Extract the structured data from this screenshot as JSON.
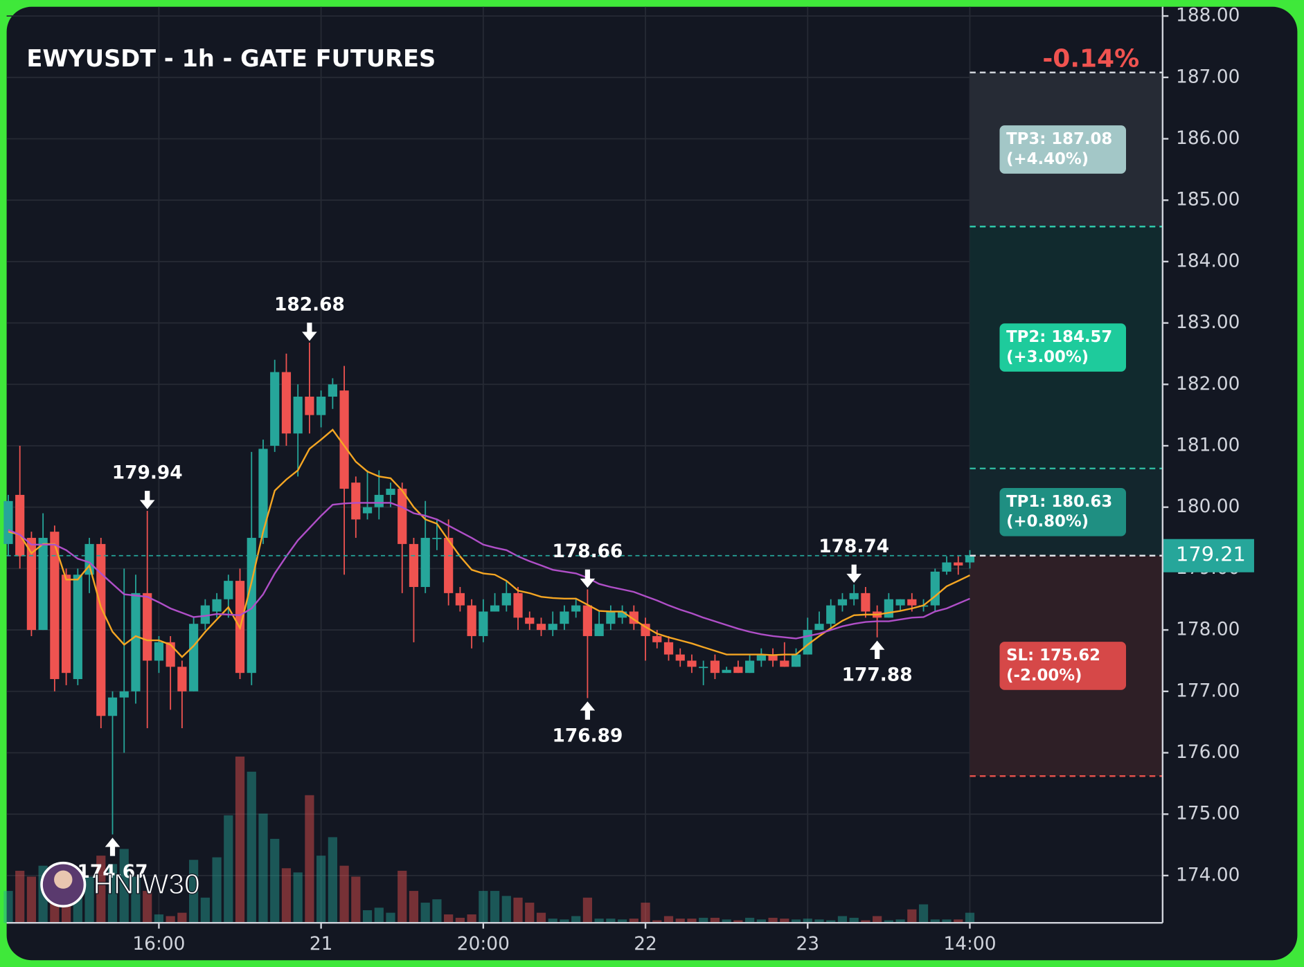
{
  "chart_data": {
    "type": "candlestick",
    "title": "EWYUSDT - 1h - GATE FUTURES",
    "change_label": "-0.14%",
    "change_color": "#f05350",
    "watermark": "HNIW30",
    "up_color": "#26a69a",
    "down_color": "#ef5350",
    "grid": true,
    "xlim": [
      -0.14,
      99.64
    ],
    "ylim": [
      173.23,
      188.15
    ],
    "xticks": [
      {
        "value": 13,
        "label": "16:00"
      },
      {
        "value": 27,
        "label": "21"
      },
      {
        "value": 41,
        "label": "20:00"
      },
      {
        "value": 55,
        "label": "22"
      },
      {
        "value": 69,
        "label": "23"
      },
      {
        "value": 83,
        "label": "14:00"
      }
    ],
    "yticks": [
      {
        "value": 174,
        "label": "174.00"
      },
      {
        "value": 175,
        "label": "175.00"
      },
      {
        "value": 176,
        "label": "176.00"
      },
      {
        "value": 177,
        "label": "177.00"
      },
      {
        "value": 178,
        "label": "178.00"
      },
      {
        "value": 179,
        "label": "179.00"
      },
      {
        "value": 180,
        "label": "180.00"
      },
      {
        "value": 181,
        "label": "181.00"
      },
      {
        "value": 182,
        "label": "182.00"
      },
      {
        "value": 183,
        "label": "183.00"
      },
      {
        "value": 184,
        "label": "184.00"
      },
      {
        "value": 185,
        "label": "185.00"
      },
      {
        "value": 186,
        "label": "186.00"
      },
      {
        "value": 187,
        "label": "187.00"
      },
      {
        "value": 188,
        "label": "188.00"
      }
    ],
    "open": [
      179.4,
      180.2,
      179.5,
      178.0,
      179.6,
      178.9,
      177.2,
      178.9,
      179.4,
      176.6,
      176.9,
      177.0,
      178.6,
      177.5,
      177.8,
      177.4,
      177.0,
      178.1,
      178.3,
      178.5,
      178.8,
      177.3,
      179.5,
      181.0,
      182.2,
      181.2,
      181.8,
      181.5,
      181.8,
      181.9,
      180.4,
      179.9,
      180.0,
      180.2,
      180.3,
      179.4,
      178.7,
      179.5,
      179.5,
      178.6,
      178.4,
      177.9,
      178.3,
      178.4,
      178.6,
      178.2,
      178.1,
      178.0,
      178.1,
      178.3,
      178.4,
      177.9,
      178.1,
      178.2,
      178.3,
      178.1,
      177.9,
      177.8,
      177.6,
      177.5,
      177.4,
      177.5,
      177.3,
      177.4,
      177.3,
      177.5,
      177.6,
      177.5,
      177.4,
      177.6,
      178.0,
      178.1,
      178.4,
      178.5,
      178.6,
      178.3,
      178.2,
      178.4,
      178.5,
      178.4,
      178.4,
      178.95,
      179.1,
      179.1
    ],
    "high": [
      180.2,
      181.0,
      179.6,
      179.9,
      179.7,
      179.0,
      179.0,
      179.5,
      179.5,
      177.0,
      179.0,
      178.9,
      179.94,
      177.9,
      177.9,
      177.5,
      178.2,
      178.5,
      178.6,
      178.9,
      179.0,
      180.9,
      181.1,
      182.4,
      182.5,
      182.0,
      182.68,
      181.9,
      182.1,
      182.3,
      180.5,
      180.6,
      180.6,
      180.4,
      180.4,
      179.5,
      180.1,
      179.8,
      179.8,
      178.7,
      178.5,
      178.5,
      178.6,
      178.8,
      178.7,
      178.3,
      178.2,
      178.3,
      178.4,
      178.5,
      178.66,
      178.3,
      178.4,
      178.4,
      178.4,
      178.2,
      178.0,
      177.9,
      177.7,
      177.6,
      177.5,
      177.6,
      177.4,
      177.5,
      177.6,
      177.7,
      177.7,
      177.8,
      177.7,
      178.2,
      178.3,
      178.5,
      178.6,
      178.74,
      178.7,
      178.4,
      178.6,
      178.5,
      178.6,
      178.5,
      179.0,
      179.2,
      179.2,
      179.3
    ],
    "low": [
      179.2,
      179.0,
      177.9,
      178.0,
      177.0,
      177.1,
      177.1,
      178.6,
      176.4,
      174.67,
      176.0,
      176.8,
      176.4,
      177.3,
      176.7,
      176.4,
      177.0,
      178.0,
      178.2,
      178.2,
      177.2,
      177.1,
      179.4,
      180.9,
      181.0,
      180.5,
      181.2,
      181.3,
      181.6,
      178.9,
      179.5,
      179.8,
      179.8,
      180.0,
      178.6,
      177.8,
      178.6,
      179.3,
      178.4,
      178.3,
      177.7,
      177.8,
      178.3,
      178.3,
      178.0,
      178.0,
      177.9,
      177.9,
      178.0,
      178.2,
      176.89,
      177.9,
      178.0,
      178.1,
      178.0,
      177.5,
      177.7,
      177.5,
      177.4,
      177.3,
      177.1,
      177.2,
      177.3,
      177.3,
      177.3,
      177.4,
      177.4,
      177.4,
      177.4,
      177.6,
      178.0,
      178.0,
      178.3,
      178.4,
      178.2,
      177.88,
      178.2,
      178.3,
      178.3,
      178.3,
      178.3,
      178.9,
      178.9,
      179.0
    ],
    "close": [
      180.1,
      179.2,
      178.0,
      179.5,
      177.2,
      177.3,
      178.9,
      179.4,
      176.6,
      176.9,
      177.0,
      178.6,
      177.5,
      177.8,
      177.4,
      177.0,
      178.1,
      178.4,
      178.5,
      178.8,
      177.3,
      179.5,
      180.95,
      182.2,
      181.2,
      181.8,
      181.5,
      181.8,
      182.0,
      180.3,
      179.8,
      180.0,
      180.2,
      180.3,
      179.4,
      178.7,
      179.5,
      179.5,
      178.6,
      178.4,
      177.9,
      178.3,
      178.4,
      178.6,
      178.2,
      178.1,
      178.0,
      178.1,
      178.3,
      178.4,
      177.9,
      178.1,
      178.3,
      178.3,
      178.1,
      177.9,
      177.8,
      177.6,
      177.5,
      177.4,
      177.4,
      177.3,
      177.35,
      177.3,
      177.5,
      177.6,
      177.5,
      177.4,
      177.6,
      178.0,
      178.1,
      178.4,
      178.5,
      178.6,
      178.3,
      178.2,
      178.5,
      178.5,
      178.4,
      178.4,
      178.95,
      179.1,
      179.05,
      179.21
    ],
    "volume": [
      38,
      62,
      55,
      68,
      38,
      40,
      60,
      55,
      80,
      70,
      88,
      55,
      38,
      10,
      8,
      12,
      75,
      30,
      78,
      128,
      198,
      180,
      130,
      100,
      65,
      60,
      152,
      80,
      102,
      68,
      55,
      15,
      18,
      12,
      62,
      38,
      24,
      28,
      10,
      6,
      10,
      38,
      38,
      32,
      30,
      24,
      12,
      5,
      4,
      8,
      30,
      5,
      5,
      4,
      5,
      24,
      3,
      8,
      5,
      5,
      6,
      6,
      4,
      3,
      6,
      4,
      6,
      5,
      4,
      5,
      4,
      3,
      8,
      6,
      3,
      8,
      3,
      4,
      16,
      22,
      4,
      4,
      4,
      12
    ],
    "lines": [
      {
        "color": "#f5a623",
        "values": [
          179.6,
          179.55,
          179.25,
          179.4,
          179.4,
          178.82,
          178.82,
          179.05,
          178.37,
          177.97,
          177.76,
          177.9,
          177.83,
          177.83,
          177.76,
          177.56,
          177.74,
          177.97,
          178.17,
          178.37,
          178.03,
          178.78,
          179.6,
          180.27,
          180.45,
          180.6,
          180.95,
          181.1,
          181.26,
          181.0,
          180.74,
          180.58,
          180.5,
          180.47,
          180.27,
          180.0,
          179.8,
          179.73,
          179.46,
          179.2,
          178.98,
          178.92,
          178.9,
          178.8,
          178.64,
          178.6,
          178.54,
          178.52,
          178.51,
          178.51,
          178.41,
          178.31,
          178.3,
          178.3,
          178.17,
          178.05,
          177.94,
          177.88,
          177.83,
          177.78,
          177.72,
          177.66,
          177.6,
          177.6,
          177.6,
          177.6,
          177.59,
          177.6,
          177.6,
          177.76,
          177.9,
          178.03,
          178.15,
          178.24,
          178.25,
          178.25,
          178.28,
          178.31,
          178.35,
          178.4,
          178.55,
          178.71,
          178.8,
          178.89
        ]
      },
      {
        "color": "#b04fc8",
        "values": [
          179.63,
          179.55,
          179.39,
          179.39,
          179.39,
          179.3,
          179.16,
          179.1,
          178.92,
          178.75,
          178.58,
          178.56,
          178.54,
          178.45,
          178.35,
          178.28,
          178.21,
          178.23,
          178.26,
          178.25,
          178.24,
          178.35,
          178.58,
          178.92,
          179.2,
          179.46,
          179.66,
          179.86,
          180.04,
          180.06,
          180.07,
          180.07,
          180.07,
          180.07,
          180.0,
          179.9,
          179.86,
          179.8,
          179.7,
          179.6,
          179.5,
          179.39,
          179.34,
          179.3,
          179.2,
          179.12,
          179.05,
          178.98,
          178.95,
          178.92,
          178.85,
          178.75,
          178.7,
          178.66,
          178.62,
          178.55,
          178.48,
          178.4,
          178.33,
          178.27,
          178.2,
          178.14,
          178.08,
          178.02,
          177.97,
          177.93,
          177.9,
          177.88,
          177.86,
          177.9,
          177.94,
          178.0,
          178.06,
          178.1,
          178.13,
          178.14,
          178.14,
          178.17,
          178.2,
          178.21,
          178.3,
          178.35,
          178.43,
          178.51
        ]
      }
    ],
    "annotations": [
      {
        "value": 182.68,
        "x": 26,
        "position": "above"
      },
      {
        "value": 179.94,
        "x": 12,
        "position": "above"
      },
      {
        "value": 178.66,
        "x": 50,
        "position": "above"
      },
      {
        "value": 178.74,
        "x": 73,
        "position": "above"
      },
      {
        "value": 174.67,
        "x": 9,
        "position": "below"
      },
      {
        "value": 176.89,
        "x": 50,
        "position": "below"
      },
      {
        "value": 177.88,
        "x": 75,
        "position": "below"
      }
    ],
    "entry": {
      "value": 179.21,
      "label": "179.21",
      "color": "#26a69a"
    },
    "levels": [
      {
        "value": 187.08,
        "label": "TP3: 187.08",
        "pct": "(+4.40%)",
        "color": "#a3c7c7",
        "line_color": "#d8dde3",
        "zone_color": "#262b35"
      },
      {
        "value": 184.57,
        "label": "TP2: 184.57",
        "pct": "(+3.00%)",
        "color": "#1ecb9c",
        "line_color": "#2fd0b0",
        "zone_color": "#112a2e"
      },
      {
        "value": 180.63,
        "label": "TP1: 180.63",
        "pct": "(+0.80%)",
        "color": "#1f8f82",
        "line_color": "#2fb9a0",
        "zone_color": "#13262d"
      },
      {
        "value": 175.62,
        "label": "SL: 175.62",
        "pct": "(-2.00%)",
        "color": "#d64848",
        "line_color": "#e8524c",
        "zone_color": "#2e1f26"
      }
    ]
  }
}
